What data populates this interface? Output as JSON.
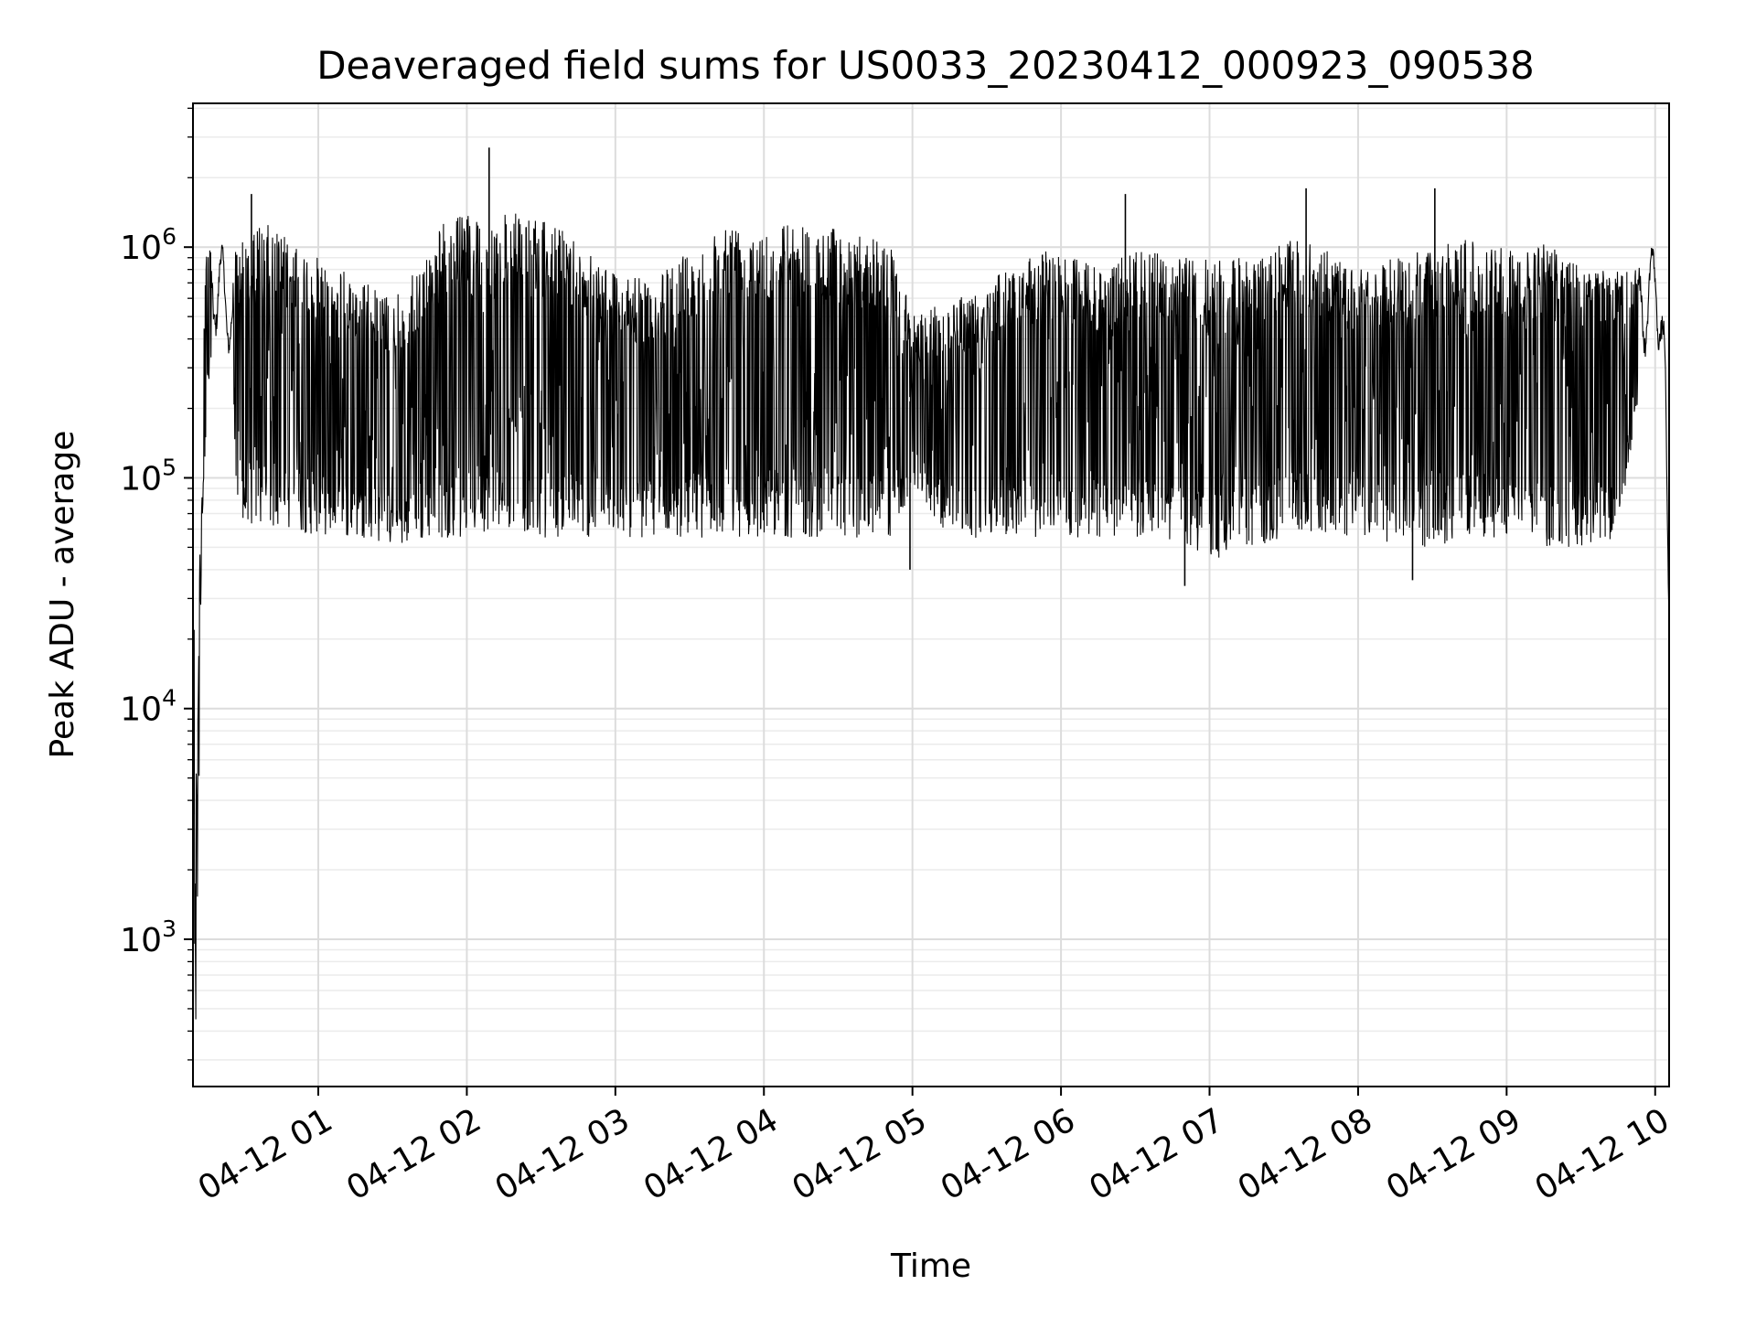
{
  "chart_data": {
    "type": "line",
    "title": "Deaveraged field sums for US0033_20230412_000923_090538",
    "xlabel": "Time",
    "ylabel": "Peak ADU - average",
    "yscale": "log",
    "grid": "on",
    "xlim": [
      "2023-04-12 00:09:23",
      "2023-04-12 10:05:38"
    ],
    "ylim": [
      230,
      4200000
    ],
    "x_ticks": [
      "04-12 01",
      "04-12 02",
      "04-12 03",
      "04-12 04",
      "04-12 05",
      "04-12 06",
      "04-12 07",
      "04-12 08",
      "04-12 09",
      "04-12 10"
    ],
    "y_ticks": [
      {
        "value": 1000,
        "label": "10^3"
      },
      {
        "value": 10000,
        "label": "10^4"
      },
      {
        "value": 100000,
        "label": "10^5"
      },
      {
        "value": 1000000,
        "label": "10^6"
      }
    ],
    "series": [
      {
        "color": "#000000",
        "envelope": {
          "x": [
            "00:09:23",
            "00:10:00",
            "00:11:00",
            "00:12:00",
            "00:13:00",
            "00:15:00",
            "00:18:00",
            "00:22:00",
            "00:25:00",
            "00:27:00",
            "00:30:00",
            "00:35:00",
            "00:40:00",
            "00:45:00",
            "00:50:00",
            "01:00:00",
            "01:10:00",
            "01:20:00",
            "01:30:00",
            "01:40:00",
            "01:50:00",
            "02:00:00",
            "02:10:00",
            "02:20:00",
            "02:30:00",
            "02:40:00",
            "02:50:00",
            "03:00:00",
            "03:15:00",
            "03:30:00",
            "03:45:00",
            "04:00:00",
            "04:15:00",
            "04:30:00",
            "04:45:00",
            "04:52:00",
            "05:00:00",
            "05:15:00",
            "05:30:00",
            "05:45:00",
            "06:00:00",
            "06:15:00",
            "06:30:00",
            "06:45:00",
            "07:00:00",
            "07:15:00",
            "07:30:00",
            "07:45:00",
            "08:00:00",
            "08:15:00",
            "08:30:00",
            "08:45:00",
            "09:00:00",
            "09:15:00",
            "09:30:00",
            "09:45:00",
            "09:55:00",
            "10:00:00",
            "10:02:00",
            "10:04:00",
            "10:05:38"
          ],
          "high": [
            60000,
            55000,
            5000,
            40000,
            300000,
            1100000,
            1300000,
            1000000,
            800000,
            1000000,
            1200000,
            1250000,
            1250000,
            1200000,
            1000000,
            900000,
            800000,
            700000,
            600000,
            800000,
            1300000,
            1400000,
            1400000,
            1400000,
            1300000,
            1200000,
            1000000,
            800000,
            700000,
            1000000,
            1300000,
            1300000,
            1300000,
            1200000,
            1100000,
            1000000,
            500000,
            600000,
            700000,
            900000,
            1000000,
            800000,
            1000000,
            900000,
            900000,
            900000,
            1100000,
            1000000,
            800000,
            900000,
            1000000,
            1100000,
            1000000,
            1050000,
            900000,
            800000,
            900000,
            1100000,
            1000000,
            400000,
            25000
          ],
          "low": [
            15000,
            400,
            350,
            5000,
            60000,
            200000,
            400000,
            400000,
            300000,
            70000,
            60000,
            60000,
            60000,
            60000,
            60000,
            55000,
            55000,
            55000,
            50000,
            52000,
            55000,
            55000,
            60000,
            60000,
            55000,
            55000,
            55000,
            55000,
            55000,
            55000,
            55000,
            55000,
            55000,
            55000,
            55000,
            55000,
            90000,
            55000,
            55000,
            55000,
            55000,
            55000,
            55000,
            50000,
            45000,
            45000,
            55000,
            55000,
            55000,
            50000,
            50000,
            55000,
            55000,
            50000,
            50000,
            55000,
            300000,
            500000,
            300000,
            150000,
            20000
          ]
        },
        "spikes": [
          {
            "x": "00:33:00",
            "y": 1700000
          },
          {
            "x": "02:09:00",
            "y": 2700000
          },
          {
            "x": "06:26:00",
            "y": 1700000
          },
          {
            "x": "07:39:00",
            "y": 1800000
          },
          {
            "x": "08:31:00",
            "y": 1800000
          },
          {
            "x": "06:50:00",
            "y": 34000
          },
          {
            "x": "08:22:00",
            "y": 36000
          },
          {
            "x": "04:59:00",
            "y": 40000
          }
        ]
      }
    ]
  }
}
